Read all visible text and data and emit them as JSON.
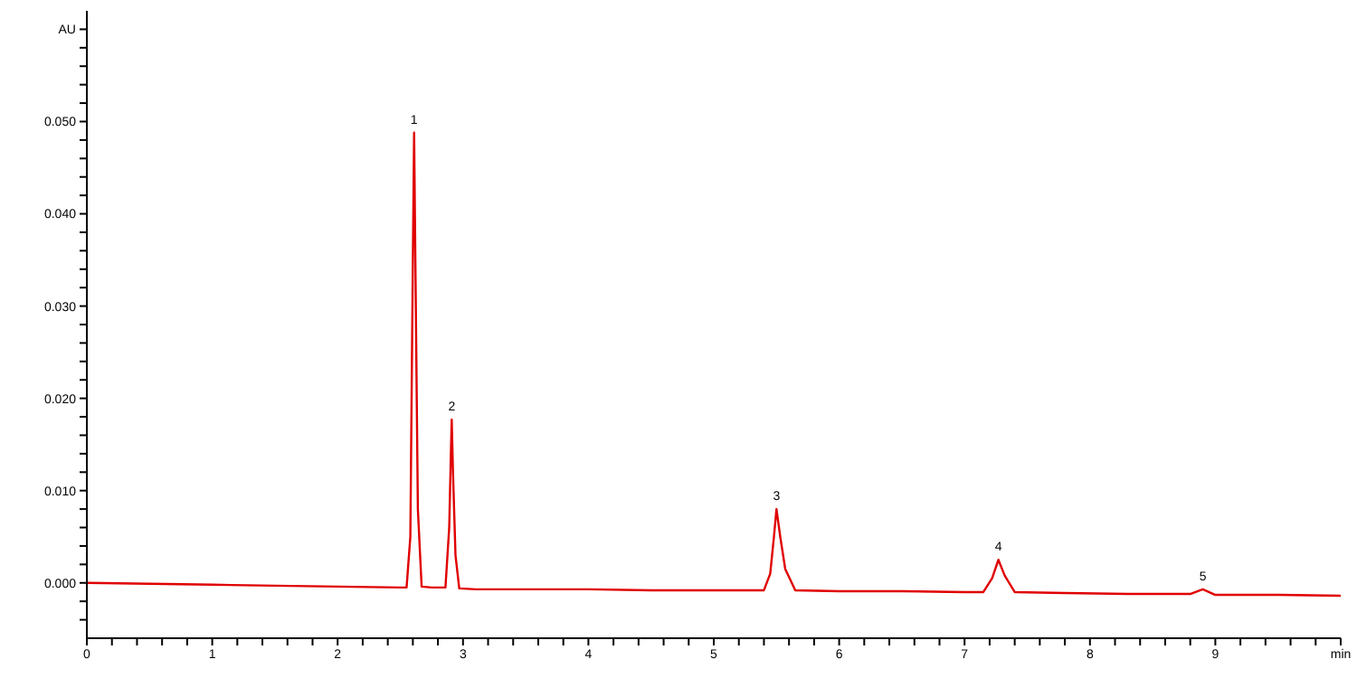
{
  "chart_data": {
    "type": "line",
    "xlabel": null,
    "x": [
      0,
      0.5,
      1,
      1.5,
      2,
      2.5,
      2.55,
      2.58,
      2.6,
      2.61,
      2.62,
      2.64,
      2.67,
      2.75,
      2.86,
      2.89,
      2.905,
      2.91,
      2.92,
      2.94,
      2.97,
      3.1,
      3.5,
      4,
      4.5,
      5,
      5.4,
      5.45,
      5.48,
      5.5,
      5.53,
      5.57,
      5.65,
      6,
      6.5,
      7,
      7.15,
      7.22,
      7.27,
      7.32,
      7.4,
      7.8,
      8.3,
      8.8,
      8.9,
      9,
      9.5,
      10
    ],
    "series": [
      {
        "color": "#e00000",
        "values": [
          0,
          -0.0001,
          -0.0002,
          -0.0003,
          -0.0004,
          -0.0005,
          -0.0005,
          0.005,
          0.035,
          0.0488,
          0.035,
          0.008,
          -0.0004,
          -0.0005,
          -0.0005,
          0.006,
          0.015,
          0.0177,
          0.012,
          0.003,
          -0.0006,
          -0.0007,
          -0.0007,
          -0.0007,
          -0.0008,
          -0.0008,
          -0.0008,
          0.001,
          0.005,
          0.008,
          0.005,
          0.0015,
          -0.0008,
          -0.0009,
          -0.0009,
          -0.001,
          -0.001,
          0.0005,
          0.0025,
          0.0008,
          -0.001,
          -0.0011,
          -0.0012,
          -0.0012,
          -0.0007,
          -0.0013,
          -0.0013,
          -0.0014
        ]
      }
    ],
    "xlim": [
      0,
      10
    ],
    "xticks": [
      0,
      {
        "value": 0.2,
        "label": null
      },
      {
        "value": 0.4,
        "label": null
      },
      {
        "value": 0.6,
        "label": null
      },
      {
        "value": 0.8,
        "label": null
      },
      1,
      {
        "value": 1.2,
        "label": null
      },
      {
        "value": 1.4,
        "label": null
      },
      {
        "value": 1.6,
        "label": null
      },
      {
        "value": 1.8,
        "label": null
      },
      2,
      {
        "value": 2.2,
        "label": null
      },
      {
        "value": 2.4,
        "label": null
      },
      {
        "value": 2.6,
        "label": null
      },
      {
        "value": 2.8,
        "label": null
      },
      3,
      {
        "value": 3.2,
        "label": null
      },
      {
        "value": 3.4,
        "label": null
      },
      {
        "value": 3.6,
        "label": null
      },
      {
        "value": 3.8,
        "label": null
      },
      4,
      {
        "value": 4.2,
        "label": null
      },
      {
        "value": 4.4,
        "label": null
      },
      {
        "value": 4.6,
        "label": null
      },
      {
        "value": 4.8,
        "label": null
      },
      5,
      {
        "value": 5.2,
        "label": null
      },
      {
        "value": 5.4,
        "label": null
      },
      {
        "value": 5.6,
        "label": null
      },
      {
        "value": 5.8,
        "label": null
      },
      6,
      {
        "value": 6.2,
        "label": null
      },
      {
        "value": 6.4,
        "label": null
      },
      {
        "value": 6.6,
        "label": null
      },
      {
        "value": 6.8,
        "label": null
      },
      7,
      {
        "value": 7.2,
        "label": null
      },
      {
        "value": 7.4,
        "label": null
      },
      {
        "value": 7.6,
        "label": null
      },
      {
        "value": 7.8,
        "label": null
      },
      8,
      {
        "value": 8.2,
        "label": null
      },
      {
        "value": 8.4,
        "label": null
      },
      {
        "value": 8.6,
        "label": null
      },
      {
        "value": 8.8,
        "label": null
      },
      9,
      {
        "value": 9.2,
        "label": null
      },
      {
        "value": 9.4,
        "label": null
      },
      {
        "value": 9.6,
        "label": null
      },
      {
        "value": 9.8,
        "label": null
      },
      {
        "value": 10,
        "label": "min"
      }
    ],
    "ylim": [
      -0.006,
      0.062
    ],
    "yticks": [
      {
        "value": -0.004,
        "label": null
      },
      {
        "value": -0.002,
        "label": null
      },
      {
        "value": 0,
        "label": "0.000"
      },
      {
        "value": 0.002,
        "label": null
      },
      {
        "value": 0.004,
        "label": null
      },
      {
        "value": 0.006,
        "label": null
      },
      {
        "value": 0.008,
        "label": null
      },
      {
        "value": 0.01,
        "label": "0.010"
      },
      {
        "value": 0.012,
        "label": null
      },
      {
        "value": 0.014,
        "label": null
      },
      {
        "value": 0.016,
        "label": null
      },
      {
        "value": 0.018,
        "label": null
      },
      {
        "value": 0.02,
        "label": "0.020"
      },
      {
        "value": 0.022,
        "label": null
      },
      {
        "value": 0.024,
        "label": null
      },
      {
        "value": 0.026,
        "label": null
      },
      {
        "value": 0.028,
        "label": null
      },
      {
        "value": 0.03,
        "label": "0.030"
      },
      {
        "value": 0.032,
        "label": null
      },
      {
        "value": 0.034,
        "label": null
      },
      {
        "value": 0.036,
        "label": null
      },
      {
        "value": 0.038,
        "label": null
      },
      {
        "value": 0.04,
        "label": "0.040"
      },
      {
        "value": 0.042,
        "label": null
      },
      {
        "value": 0.044,
        "label": null
      },
      {
        "value": 0.046,
        "label": null
      },
      {
        "value": 0.048,
        "label": null
      },
      {
        "value": 0.05,
        "label": "0.050"
      },
      {
        "value": 0.052,
        "label": null
      },
      {
        "value": 0.054,
        "label": null
      },
      {
        "value": 0.056,
        "label": null
      },
      {
        "value": 0.058,
        "label": null
      },
      {
        "value": 0.06,
        "label": "AU"
      }
    ],
    "annotations": [
      {
        "text": "1",
        "x": 2.61,
        "y": 0.0488
      },
      {
        "text": "2",
        "x": 2.91,
        "y": 0.0177
      },
      {
        "text": "3",
        "x": 5.5,
        "y": 0.008
      },
      {
        "text": "4",
        "x": 7.27,
        "y": 0.0025
      },
      {
        "text": "5",
        "x": 8.9,
        "y": -0.0007
      }
    ],
    "grid": false,
    "legend": false,
    "marker": "none",
    "line_style": "solid"
  }
}
